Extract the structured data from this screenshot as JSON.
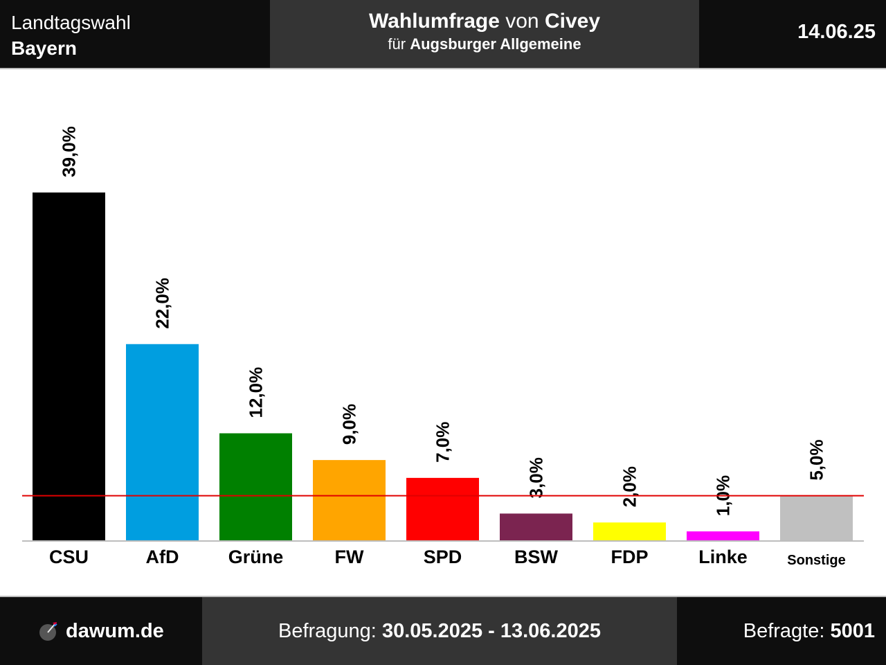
{
  "header": {
    "election_line1": "Landtagswahl",
    "election_line2": "Bayern",
    "title_bold1": "Wahlumfrage",
    "title_connector": "von",
    "title_bold2": "Civey",
    "subtitle_prefix": "für",
    "subtitle_client": "Augsburger Allgemeine",
    "date": "14.06.25"
  },
  "footer": {
    "brand": "dawum.de",
    "period_label": "Befragung:",
    "period_value": "30.05.2025 - 13.06.2025",
    "respondents_label": "Befragte:",
    "respondents_value": "5001"
  },
  "chart_data": {
    "type": "bar",
    "categories": [
      "CSU",
      "AfD",
      "Grüne",
      "FW",
      "SPD",
      "BSW",
      "FDP",
      "Linke",
      "Sonstige"
    ],
    "values": [
      39.0,
      22.0,
      12.0,
      9.0,
      7.0,
      3.0,
      2.0,
      1.0,
      5.0
    ],
    "value_labels": [
      "39,0%",
      "22,0%",
      "12,0%",
      "9,0%",
      "7,0%",
      "3,0%",
      "2,0%",
      "1,0%",
      "5,0%"
    ],
    "colors": [
      "#000000",
      "#009ee0",
      "#008000",
      "#ffa500",
      "#ff0000",
      "#7b2450",
      "#ffff00",
      "#ff00ff",
      "#c0c0c0"
    ],
    "threshold": 5,
    "threshold_color": "#e00000",
    "ylim": [
      0,
      45
    ]
  }
}
